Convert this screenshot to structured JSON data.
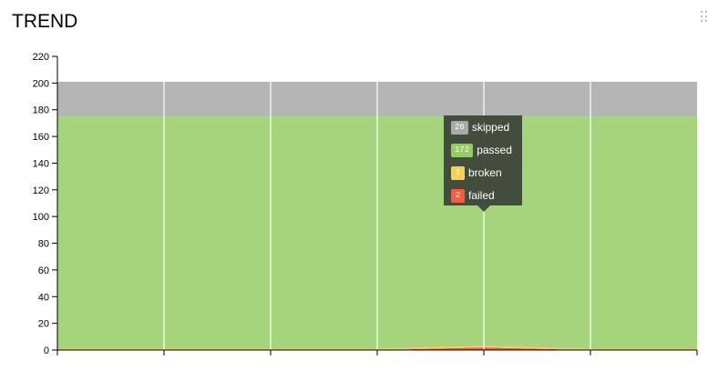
{
  "widget": {
    "title": "TREND"
  },
  "tooltip": {
    "items": [
      {
        "status": "skipped",
        "count": "26",
        "color": "#aaaaaa"
      },
      {
        "status": "passed",
        "count": "172",
        "color": "#97cc64"
      },
      {
        "status": "broken",
        "count": "1",
        "color": "#ffd050"
      },
      {
        "status": "failed",
        "count": "2",
        "color": "#fd5a3e"
      }
    ]
  },
  "chart_data": {
    "type": "area",
    "stacked": true,
    "ylim": [
      0,
      220
    ],
    "yticks": [
      0,
      20,
      40,
      60,
      80,
      100,
      120,
      140,
      160,
      180,
      200,
      220
    ],
    "x": [
      0,
      1,
      2,
      3,
      4,
      5,
      6
    ],
    "series": [
      {
        "name": "failed",
        "color": "#fd5a3e",
        "values": [
          0,
          0,
          0,
          0,
          2,
          0,
          0
        ]
      },
      {
        "name": "broken",
        "color": "#ffd050",
        "values": [
          1,
          1,
          1,
          1,
          1,
          1,
          1
        ]
      },
      {
        "name": "passed",
        "color": "#a5d47c",
        "values": [
          174,
          174,
          174,
          174,
          172,
          174,
          174
        ]
      },
      {
        "name": "skipped",
        "color": "#b5b5b5",
        "values": [
          26,
          26,
          26,
          26,
          26,
          26,
          26
        ]
      }
    ],
    "grid": true
  }
}
